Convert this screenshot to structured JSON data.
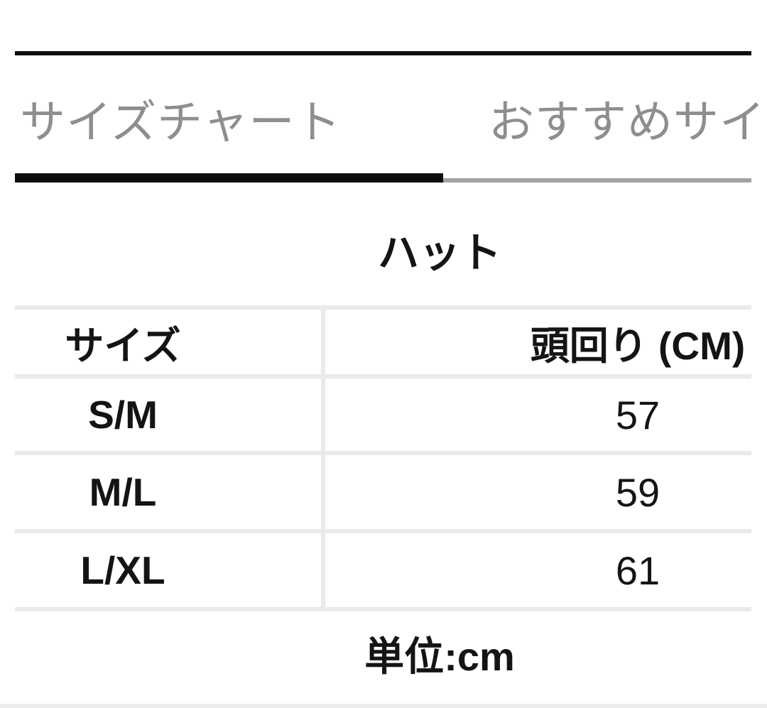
{
  "tabs": {
    "size_chart_label": "サイズチャート",
    "recommended_label": "おすすめサイ"
  },
  "title": "ハット",
  "table": {
    "headers": {
      "size": "サイズ",
      "measurement": "頭回り (CM)"
    },
    "rows": [
      {
        "size": "S/M",
        "value": "57"
      },
      {
        "size": "M/L",
        "value": "59"
      },
      {
        "size": "L/XL",
        "value": "61"
      }
    ]
  },
  "footer": {
    "unit_label": "単位:cm"
  },
  "colors": {
    "accent_black": "#0d0d0d",
    "tab_text_gray": "#8e8e8e",
    "inactive_underline_gray": "#a2a2a2",
    "table_border_gray": "#e8eaec",
    "bottom_strip_gray": "#ececec"
  }
}
